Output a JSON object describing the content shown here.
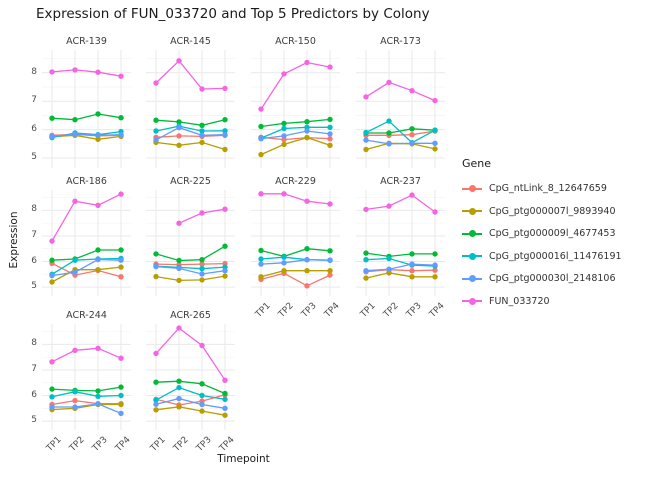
{
  "title": "Expression of FUN_033720 and Top 5 Predictors by Colony",
  "axes": {
    "x_title": "Timepoint",
    "y_title": "Expression",
    "x_tick_labels": [
      "TP1",
      "TP2",
      "TP3",
      "TP4"
    ],
    "y_tick_labels": [
      5,
      6,
      7,
      8
    ]
  },
  "legend": {
    "title": "Gene",
    "position": "right"
  },
  "colors": {
    "background": "#ffffff",
    "grid_major": "#e9e9e9",
    "grid_minor": "#f4f4f4",
    "tick_text": "#4d4d4d"
  },
  "chart_data": {
    "type": "line",
    "title": "Expression of FUN_033720 and Top 5 Predictors by Colony",
    "xlabel": "Timepoint",
    "ylabel": "Expression",
    "x": [
      "TP1",
      "TP2",
      "TP3",
      "TP4"
    ],
    "ylim": [
      4.65,
      8.8
    ],
    "y_ticks": [
      5,
      6,
      7,
      8
    ],
    "grid": true,
    "legend_title": "Gene",
    "legend_position": "right",
    "series": [
      {
        "name": "CpG_ntLink_8_12647659",
        "color": "#F8766D"
      },
      {
        "name": "CpG_ptg000007l_9893940",
        "color": "#B79F00"
      },
      {
        "name": "CpG_ptg000009l_4677453",
        "color": "#00BA38"
      },
      {
        "name": "CpG_ptg000016l_11476191",
        "color": "#00BFC4"
      },
      {
        "name": "CpG_ptg000030l_2148106",
        "color": "#619CFF"
      },
      {
        "name": "FUN_033720",
        "color": "#F564E3"
      }
    ],
    "facets": [
      {
        "name": "ACR-139",
        "values": [
          [
            5.8,
            5.83,
            5.78,
            5.8
          ],
          [
            5.75,
            5.8,
            5.66,
            5.76
          ],
          [
            6.4,
            6.35,
            6.55,
            6.42
          ],
          [
            5.72,
            5.88,
            5.82,
            5.93
          ],
          [
            5.76,
            5.84,
            5.8,
            5.82
          ],
          [
            8.03,
            8.1,
            8.02,
            7.88
          ]
        ]
      },
      {
        "name": "ACR-145",
        "values": [
          [
            5.73,
            5.78,
            5.76,
            5.8
          ],
          [
            5.55,
            5.45,
            5.55,
            5.3
          ],
          [
            6.33,
            6.27,
            6.15,
            6.35
          ],
          [
            5.95,
            6.12,
            5.95,
            5.96
          ],
          [
            5.64,
            6.07,
            5.8,
            5.82
          ],
          [
            7.64,
            8.42,
            7.43,
            7.45
          ]
        ]
      },
      {
        "name": "ACR-150",
        "values": [
          [
            5.73,
            5.65,
            5.72,
            5.68
          ],
          [
            5.12,
            5.48,
            5.72,
            5.45
          ],
          [
            6.11,
            6.22,
            6.28,
            6.36
          ],
          [
            5.7,
            6.04,
            6.08,
            6.08
          ],
          [
            5.68,
            5.78,
            5.95,
            5.85
          ],
          [
            6.72,
            7.96,
            8.36,
            8.2
          ]
        ]
      },
      {
        "name": "ACR-173",
        "values": [
          [
            5.8,
            5.8,
            5.82,
            5.95
          ],
          [
            5.3,
            5.52,
            5.5,
            5.32
          ],
          [
            5.88,
            5.88,
            6.03,
            5.98
          ],
          [
            5.9,
            6.3,
            5.54,
            5.98
          ],
          [
            5.63,
            5.5,
            5.52,
            5.52
          ],
          [
            7.15,
            7.66,
            7.37,
            7.02
          ]
        ]
      },
      {
        "name": "ACR-186",
        "values": [
          [
            5.93,
            5.47,
            5.65,
            5.4
          ],
          [
            5.2,
            5.68,
            5.68,
            5.78
          ],
          [
            6.05,
            6.1,
            6.45,
            6.45
          ],
          [
            5.5,
            6.05,
            6.1,
            6.12
          ],
          [
            5.45,
            5.58,
            6.08,
            6.05
          ],
          [
            6.8,
            8.36,
            8.2,
            8.64
          ]
        ]
      },
      {
        "name": "ACR-225",
        "values": [
          [
            5.9,
            5.88,
            5.9,
            5.92
          ],
          [
            5.41,
            5.26,
            5.28,
            5.43
          ],
          [
            6.3,
            6.04,
            6.07,
            6.6
          ],
          [
            5.82,
            5.77,
            5.72,
            5.78
          ],
          [
            5.8,
            5.73,
            5.51,
            5.64
          ],
          [
            null,
            7.5,
            7.9,
            8.05
          ]
        ]
      },
      {
        "name": "ACR-229",
        "values": [
          [
            5.3,
            5.54,
            5.05,
            5.47
          ],
          [
            5.4,
            5.64,
            5.64,
            5.64
          ],
          [
            6.43,
            6.2,
            6.5,
            6.42
          ],
          [
            6.1,
            6.17,
            6.07,
            6.05
          ],
          [
            5.9,
            5.95,
            6.07,
            6.05
          ],
          [
            8.65,
            8.65,
            8.36,
            8.25
          ]
        ]
      },
      {
        "name": "ACR-237",
        "values": [
          [
            5.6,
            5.68,
            5.64,
            5.66
          ],
          [
            5.35,
            5.56,
            5.4,
            5.4
          ],
          [
            6.33,
            6.2,
            6.3,
            6.3
          ],
          [
            6.07,
            6.12,
            5.86,
            5.82
          ],
          [
            5.64,
            5.7,
            5.9,
            5.86
          ],
          [
            8.04,
            8.17,
            8.6,
            7.94
          ]
        ]
      },
      {
        "name": "ACR-244",
        "values": [
          [
            5.65,
            5.8,
            5.68,
            5.68
          ],
          [
            5.45,
            5.5,
            5.65,
            5.65
          ],
          [
            6.25,
            6.2,
            6.18,
            6.33
          ],
          [
            5.95,
            6.15,
            5.97,
            6.0
          ],
          [
            5.55,
            5.55,
            5.67,
            5.3
          ],
          [
            7.32,
            7.77,
            7.85,
            7.46
          ]
        ]
      },
      {
        "name": "ACR-265",
        "values": [
          [
            5.85,
            5.63,
            5.78,
            6.03
          ],
          [
            5.44,
            5.56,
            5.39,
            5.23
          ],
          [
            6.52,
            6.56,
            6.46,
            6.08
          ],
          [
            5.82,
            6.31,
            6.0,
            5.85
          ],
          [
            5.66,
            5.88,
            5.65,
            5.5
          ],
          [
            7.65,
            8.64,
            7.96,
            6.6
          ]
        ]
      }
    ]
  }
}
